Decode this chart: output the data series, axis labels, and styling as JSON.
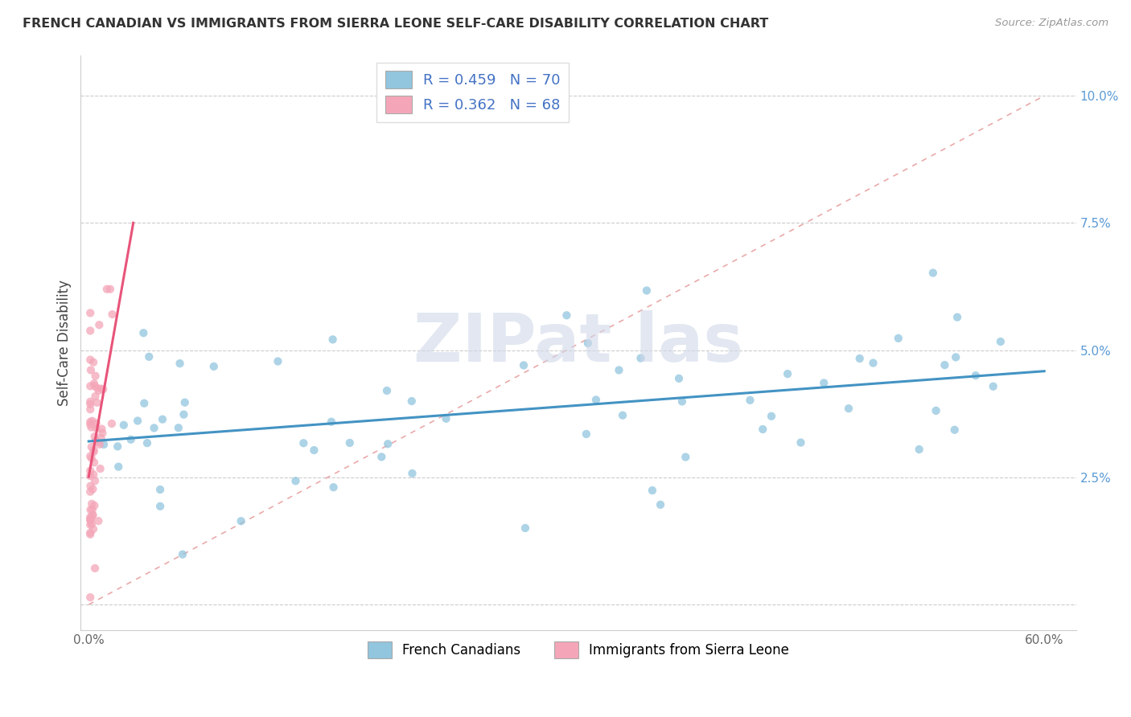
{
  "title": "FRENCH CANADIAN VS IMMIGRANTS FROM SIERRA LEONE SELF-CARE DISABILITY CORRELATION CHART",
  "source": "Source: ZipAtlas.com",
  "xlabel_french": "French Canadians",
  "xlabel_sierra": "Immigrants from Sierra Leone",
  "ylabel": "Self-Care Disability",
  "xlim": [
    -0.005,
    0.62
  ],
  "ylim": [
    -0.005,
    0.108
  ],
  "xtick_positions": [
    0.0,
    0.6
  ],
  "xtick_labels": [
    "0.0%",
    "60.0%"
  ],
  "ytick_positions": [
    0.025,
    0.05,
    0.075,
    0.1
  ],
  "ytick_labels": [
    "2.5%",
    "5.0%",
    "7.5%",
    "10.0%"
  ],
  "grid_yticks": [
    0.0,
    0.025,
    0.05,
    0.075,
    0.1
  ],
  "legend_r_french": "0.459",
  "legend_n_french": "70",
  "legend_r_sierra": "0.362",
  "legend_n_sierra": "68",
  "color_french": "#92C5DE",
  "color_sierra": "#F4A6B8",
  "trend_color_french": "#4393C3",
  "trend_color_sierra": "#E8547A",
  "diag_color": "#E8A0A0",
  "watermark_text": "ZIPat las",
  "watermark_color": "#D0D8E8",
  "fc_seed": 123,
  "sl_seed": 456
}
